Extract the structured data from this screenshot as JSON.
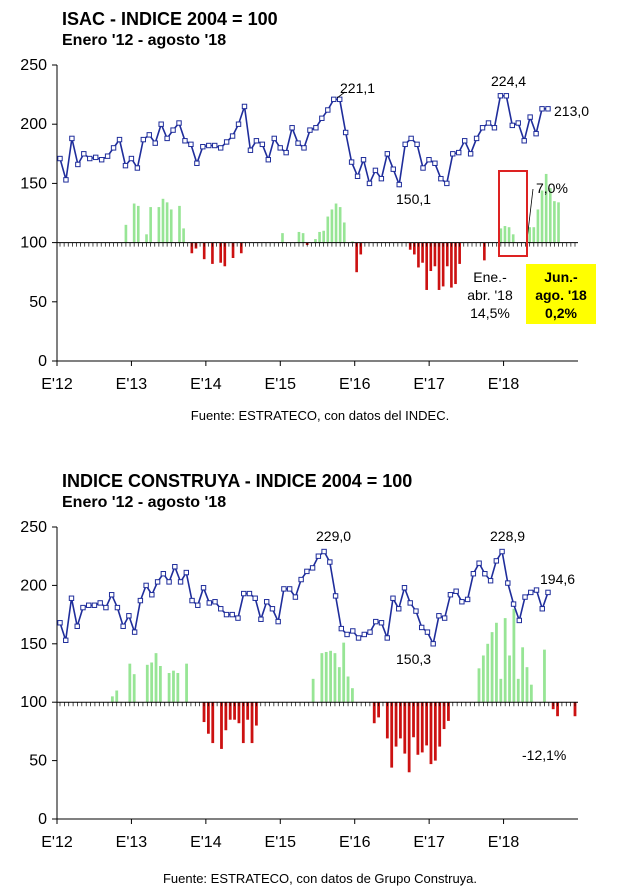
{
  "chart_data": [
    {
      "type": "line",
      "title": "ISAC - INDICE 2004 = 100",
      "subtitle": "Enero '12 - agosto '18",
      "source": "Fuente: ESTRATECO, con datos del INDEC.",
      "ylim": [
        0,
        250
      ],
      "yticks": [
        "0",
        "50",
        "100",
        "150",
        "200",
        "250"
      ],
      "xticks": [
        "E'12",
        "E'13",
        "E'14",
        "E'15",
        "E'16",
        "E'17",
        "E'18"
      ],
      "x_start": "2012-01",
      "x_end": "2018-08",
      "grid": false,
      "series": [
        {
          "kind": "line",
          "color": "#1f2d9b",
          "values": [
            171,
            153,
            188,
            166,
            175,
            171,
            172,
            170,
            173,
            180,
            187,
            165,
            171,
            163,
            187,
            191,
            184,
            200,
            188,
            195,
            201,
            186,
            183,
            167,
            181,
            182,
            182,
            180,
            185,
            190,
            200,
            215,
            178,
            186,
            183,
            170,
            188,
            180,
            176,
            197,
            184,
            180,
            195,
            197,
            205,
            212,
            221,
            221,
            193,
            168,
            156,
            170,
            150,
            161,
            154,
            175,
            162,
            149,
            183,
            188,
            183,
            163,
            170,
            167,
            154,
            150,
            175,
            176,
            186,
            175,
            188,
            197,
            201,
            197,
            224,
            224,
            199,
            201,
            186,
            206,
            192,
            213,
            213
          ]
        },
        {
          "kind": "bar",
          "color_positive": "#97e595",
          "color_negative": "#cc1111",
          "baseline": 100,
          "values": [
            100,
            100,
            100,
            100,
            100,
            100,
            100,
            100,
            100,
            100,
            100,
            100,
            100,
            100,
            100,
            100,
            115,
            100,
            133,
            131,
            100,
            107,
            130,
            100,
            130,
            137,
            134,
            128,
            100,
            131,
            112,
            100,
            91,
            95,
            100,
            86,
            100,
            82,
            100,
            83,
            80,
            100,
            87,
            100,
            91,
            100,
            100,
            100,
            100,
            100,
            100,
            100,
            100,
            100,
            108,
            100,
            100,
            100,
            109,
            108,
            98,
            100,
            103,
            109,
            110,
            122,
            128,
            133,
            130,
            117,
            100,
            101,
            75,
            90,
            100,
            100,
            100,
            100,
            100,
            100,
            100,
            100,
            100,
            100,
            100,
            94,
            90,
            79,
            83,
            60,
            76,
            80,
            60,
            63,
            80,
            62,
            65,
            82,
            100,
            100,
            100,
            100,
            100,
            85,
            100,
            100,
            100,
            112,
            114,
            113,
            107,
            100,
            100,
            100,
            113,
            113,
            128,
            144,
            158,
            146,
            135,
            134,
            100,
            100,
            100,
            100
          ]
        }
      ],
      "annotations": {
        "peak_1": "221,1",
        "peak_2": "224,4",
        "last": "213,0",
        "trough": "150,1",
        "pct": "7,0%",
        "ytd_label_1": "Ene.-",
        "ytd_label_2": "abr. '18",
        "ytd_value": "14,5%",
        "box_label_1": "Jun.-",
        "box_label_2": "ago. '18",
        "box_value": "0,2%"
      }
    },
    {
      "type": "line",
      "title": "INDICE CONSTRUYA - INDICE 2004 = 100",
      "subtitle": "Enero '12 - agosto '18",
      "source": "Fuente: ESTRATECO, con datos de Grupo Construya.",
      "ylim": [
        0,
        250
      ],
      "yticks": [
        "0",
        "50",
        "100",
        "150",
        "200",
        "250"
      ],
      "xticks": [
        "E'12",
        "E'13",
        "E'14",
        "E'15",
        "E'16",
        "E'17",
        "E'18"
      ],
      "x_start": "2012-01",
      "x_end": "2018-08",
      "grid": false,
      "series": [
        {
          "kind": "line",
          "color": "#1f2d9b",
          "values": [
            168,
            153,
            189,
            165,
            181,
            183,
            183,
            185,
            181,
            192,
            181,
            165,
            174,
            160,
            187,
            200,
            192,
            203,
            210,
            203,
            216,
            203,
            211,
            187,
            183,
            198,
            185,
            186,
            180,
            175,
            175,
            172,
            193,
            193,
            189,
            171,
            186,
            180,
            169,
            197,
            197,
            190,
            205,
            212,
            215,
            225,
            229,
            220,
            191,
            163,
            158,
            161,
            155,
            158,
            160,
            169,
            168,
            155,
            189,
            180,
            198,
            185,
            178,
            164,
            160,
            150,
            174,
            172,
            192,
            195,
            186,
            188,
            210,
            219,
            210,
            204,
            221,
            229,
            202,
            184,
            170,
            190,
            194,
            196,
            180,
            194
          ]
        },
        {
          "kind": "bar",
          "color_positive": "#97e595",
          "color_negative": "#cc1111",
          "baseline": 100,
          "values": [
            100,
            100,
            100,
            100,
            100,
            100,
            100,
            100,
            100,
            100,
            100,
            100,
            105,
            110,
            100,
            100,
            133,
            124,
            100,
            100,
            132,
            134,
            142,
            131,
            100,
            125,
            127,
            125,
            100,
            133,
            100,
            100,
            100,
            83,
            73,
            65,
            100,
            60,
            76,
            85,
            85,
            82,
            65,
            85,
            65,
            80,
            100,
            100,
            100,
            100,
            100,
            100,
            100,
            100,
            100,
            100,
            100,
            100,
            120,
            100,
            142,
            143,
            144,
            142,
            130,
            151,
            122,
            112,
            100,
            100,
            100,
            100,
            82,
            87,
            100,
            69,
            44,
            62,
            69,
            56,
            40,
            70,
            55,
            57,
            63,
            47,
            50,
            62,
            77,
            84,
            100,
            100,
            100,
            100,
            100,
            100,
            129,
            140,
            150,
            160,
            168,
            120,
            172,
            140,
            180,
            120,
            147,
            130,
            115,
            100,
            100,
            145,
            100,
            94,
            88,
            100,
            100,
            100,
            88
          ]
        }
      ],
      "annotations": {
        "peak_1": "229,0",
        "peak_2": "228,9",
        "last": "194,6",
        "trough": "150,3",
        "pct": "-12,1%"
      }
    }
  ],
  "colors": {
    "line": "#1f2d9b",
    "bar_positive": "#97e595",
    "bar_negative": "#cc1111",
    "highlight_box": "#ffff00",
    "frame": "#dd2222"
  }
}
